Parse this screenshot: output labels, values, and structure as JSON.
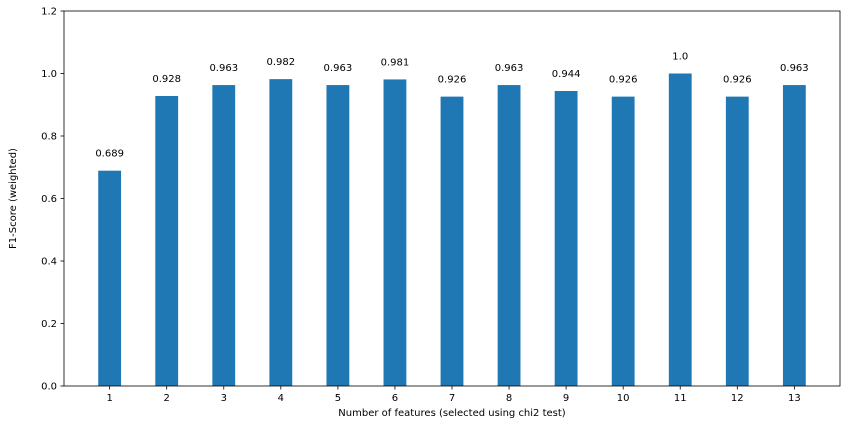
{
  "chart_data": {
    "type": "bar",
    "title": "",
    "xlabel": "Number of features (selected using chi2 test)",
    "ylabel": "F1-Score (weighted)",
    "categories": [
      "1",
      "2",
      "3",
      "4",
      "5",
      "6",
      "7",
      "8",
      "9",
      "10",
      "11",
      "12",
      "13"
    ],
    "values": [
      0.689,
      0.928,
      0.963,
      0.982,
      0.963,
      0.981,
      0.926,
      0.963,
      0.944,
      0.926,
      1.0,
      0.926,
      0.963
    ],
    "value_labels": [
      "0.689",
      "0.928",
      "0.963",
      "0.982",
      "0.963",
      "0.981",
      "0.926",
      "0.963",
      "0.944",
      "0.926",
      "1.0",
      "0.926",
      "0.963"
    ],
    "ylim": [
      0,
      1.2
    ],
    "yticks": [
      0.0,
      0.2,
      0.4,
      0.6,
      0.8,
      1.0,
      1.2
    ],
    "ytick_labels": [
      "0.0",
      "0.2",
      "0.4",
      "0.6",
      "0.8",
      "1.0",
      "1.2"
    ],
    "grid": false,
    "bar_color": "#1f77b4",
    "axis_color": "#000000"
  }
}
